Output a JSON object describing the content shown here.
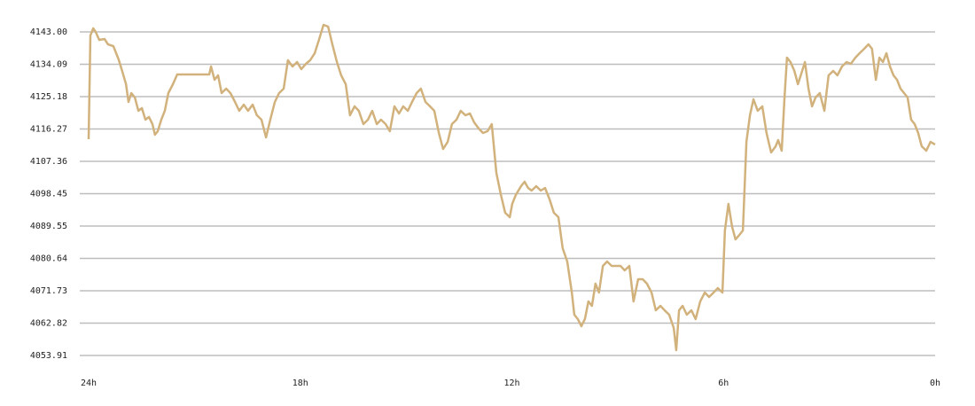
{
  "chart_data": {
    "type": "line",
    "color": "#d2b27c",
    "grid": true,
    "xlim": [
      24,
      0
    ],
    "xticks": [
      {
        "value": 24,
        "label": "24h"
      },
      {
        "value": 18,
        "label": "18h"
      },
      {
        "value": 12,
        "label": "12h"
      },
      {
        "value": 6,
        "label": "6h"
      },
      {
        "value": 0,
        "label": "0h"
      }
    ],
    "ylim": [
      4051,
      4146
    ],
    "yticks": [
      {
        "value": 4143,
        "label": "4143.00"
      },
      4134.09,
      4125.18,
      4116.27,
      4107.36,
      4098.45,
      4089.55,
      4080.64,
      4071.73,
      4062.82,
      4053.91
    ],
    "x": [
      24.0,
      23.95,
      23.87,
      23.8,
      23.7,
      23.55,
      23.45,
      23.3,
      23.15,
      23.05,
      22.94,
      22.87,
      22.79,
      22.69,
      22.59,
      22.49,
      22.39,
      22.29,
      22.19,
      22.12,
      22.04,
      21.94,
      21.84,
      21.74,
      21.61,
      21.49,
      21.24,
      20.98,
      20.58,
      20.53,
      20.43,
      20.33,
      20.23,
      20.1,
      19.98,
      19.85,
      19.73,
      19.6,
      19.48,
      19.35,
      19.23,
      19.1,
      18.97,
      18.85,
      18.72,
      18.6,
      18.47,
      18.35,
      18.22,
      18.09,
      17.97,
      17.84,
      17.72,
      17.59,
      17.47,
      17.34,
      17.21,
      17.09,
      16.96,
      16.84,
      16.71,
      16.59,
      16.46,
      16.34,
      16.21,
      16.08,
      15.96,
      15.83,
      15.71,
      15.58,
      15.46,
      15.33,
      15.2,
      15.08,
      14.95,
      14.83,
      14.7,
      14.58,
      14.45,
      14.32,
      14.2,
      14.07,
      13.95,
      13.82,
      13.7,
      13.57,
      13.45,
      13.32,
      13.19,
      13.07,
      12.94,
      12.82,
      12.69,
      12.57,
      12.44,
      12.31,
      12.19,
      12.06,
      11.99,
      11.89,
      11.74,
      11.64,
      11.54,
      11.44,
      11.31,
      11.18,
      11.06,
      10.93,
      10.81,
      10.68,
      10.56,
      10.43,
      10.3,
      10.23,
      10.13,
      10.03,
      9.93,
      9.83,
      9.73,
      9.63,
      9.53,
      9.42,
      9.3,
      9.17,
      9.05,
      8.92,
      8.8,
      8.67,
      8.55,
      8.42,
      8.29,
      8.17,
      8.04,
      7.92,
      7.79,
      7.67,
      7.54,
      7.41,
      7.34,
      7.26,
      7.16,
      7.04,
      6.91,
      6.79,
      6.66,
      6.53,
      6.41,
      6.28,
      6.16,
      6.03,
      5.96,
      5.86,
      5.76,
      5.66,
      5.55,
      5.45,
      5.35,
      5.25,
      5.15,
      5.03,
      4.9,
      4.78,
      4.65,
      4.52,
      4.45,
      4.35,
      4.27,
      4.2,
      4.1,
      3.99,
      3.89,
      3.77,
      3.69,
      3.59,
      3.49,
      3.39,
      3.27,
      3.14,
      3.02,
      2.89,
      2.77,
      2.64,
      2.51,
      2.39,
      2.26,
      2.14,
      2.01,
      1.89,
      1.79,
      1.68,
      1.58,
      1.48,
      1.38,
      1.28,
      1.18,
      1.08,
      0.98,
      0.88,
      0.78,
      0.68,
      0.58,
      0.48,
      0.38,
      0.25,
      0.13,
      0.0
    ],
    "values": [
      4113.46,
      4142.02,
      4143.98,
      4143.0,
      4140.8,
      4141.05,
      4139.58,
      4139.09,
      4135.43,
      4132.26,
      4128.6,
      4123.72,
      4126.16,
      4124.94,
      4121.28,
      4122.01,
      4118.83,
      4119.57,
      4117.61,
      4114.68,
      4115.66,
      4118.83,
      4121.28,
      4126.16,
      4128.6,
      4131.28,
      4131.28,
      4131.28,
      4131.28,
      4133.48,
      4129.82,
      4131.04,
      4126.16,
      4127.38,
      4126.16,
      4123.72,
      4121.28,
      4122.98,
      4121.28,
      4122.98,
      4120.05,
      4118.83,
      4113.95,
      4118.83,
      4123.72,
      4126.16,
      4127.38,
      4135.19,
      4133.48,
      4134.7,
      4132.75,
      4134.21,
      4135.19,
      4137.14,
      4140.8,
      4144.95,
      4144.46,
      4139.58,
      4134.7,
      4131.04,
      4128.6,
      4120.05,
      4122.5,
      4121.28,
      4117.61,
      4118.83,
      4121.28,
      4117.61,
      4118.83,
      4117.61,
      4115.66,
      4122.5,
      4120.54,
      4122.5,
      4121.28,
      4123.72,
      4126.16,
      4127.38,
      4123.72,
      4122.5,
      4121.28,
      4115.17,
      4110.78,
      4112.73,
      4117.61,
      4118.83,
      4121.28,
      4120.05,
      4120.54,
      4118.1,
      4116.39,
      4115.17,
      4115.66,
      4117.61,
      4104.19,
      4098.09,
      4093.2,
      4091.98,
      4095.65,
      4098.09,
      4100.53,
      4101.75,
      4100.04,
      4099.31,
      4100.53,
      4099.31,
      4100.04,
      4096.87,
      4093.2,
      4091.98,
      4083.44,
      4079.78,
      4071.24,
      4065.14,
      4063.92,
      4061.97,
      4063.92,
      4068.79,
      4067.57,
      4073.68,
      4071.24,
      4078.56,
      4079.78,
      4078.56,
      4078.56,
      4078.56,
      4077.34,
      4078.56,
      4068.79,
      4074.9,
      4074.9,
      4073.68,
      4071.24,
      4066.35,
      4067.57,
      4066.35,
      4065.14,
      4061.47,
      4055.37,
      4066.35,
      4067.57,
      4065.14,
      4066.35,
      4063.92,
      4068.79,
      4071.24,
      4070.01,
      4071.24,
      4072.46,
      4071.24,
      4088.32,
      4095.65,
      4089.54,
      4085.88,
      4087.1,
      4088.32,
      4112.73,
      4120.05,
      4124.45,
      4121.28,
      4122.5,
      4115.17,
      4109.8,
      4111.51,
      4113.22,
      4110.29,
      4124.94,
      4135.92,
      4134.7,
      4132.26,
      4128.6,
      4132.26,
      4134.7,
      4127.38,
      4122.5,
      4124.94,
      4126.16,
      4121.28,
      4131.04,
      4132.26,
      4131.04,
      4133.48,
      4134.7,
      4134.21,
      4135.92,
      4137.14,
      4138.36,
      4139.58,
      4138.36,
      4129.82,
      4135.92,
      4134.7,
      4137.14,
      4133.48,
      4131.04,
      4129.82,
      4127.38,
      4126.16,
      4124.94,
      4118.83,
      4117.61,
      4115.17,
      4111.51,
      4110.29,
      4112.73,
      4112.0
    ]
  }
}
